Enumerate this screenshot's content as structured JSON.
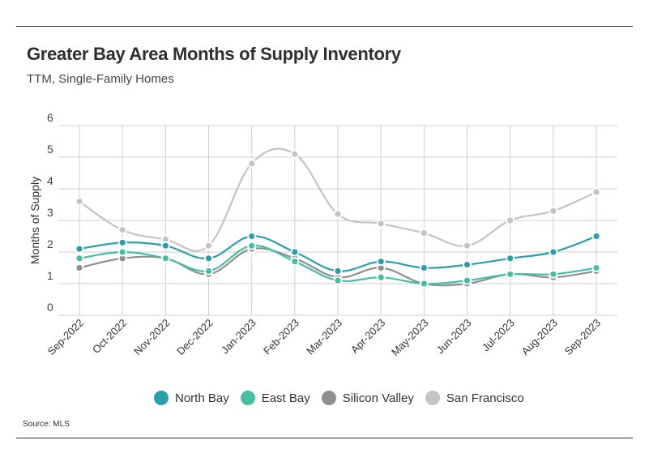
{
  "header": {
    "title": "Greater Bay Area Months of Supply Inventory",
    "subtitle": "TTM, Single-Family Homes"
  },
  "footer": {
    "source": "Source: MLS"
  },
  "chart_data": {
    "type": "line",
    "title": "Greater Bay Area Months of Supply Inventory",
    "subtitle": "TTM, Single-Family Homes",
    "xlabel": "",
    "ylabel": "Months of Supply",
    "ylim": [
      0,
      6
    ],
    "yticks": [
      0,
      1,
      2,
      3,
      4,
      5,
      6
    ],
    "grid": true,
    "legend_position": "bottom",
    "categories": [
      "Sep-2022",
      "Oct-2022",
      "Nov-2022",
      "Dec-2022",
      "Jan-2023",
      "Feb-2023",
      "Mar-2023",
      "Apr-2023",
      "May-2023",
      "Jun-2023",
      "Jul-2023",
      "Aug-2023",
      "Sep-2023"
    ],
    "series": [
      {
        "name": "San Francisco",
        "color": "#c4c4c4",
        "values": [
          3.6,
          2.7,
          2.4,
          2.2,
          4.8,
          5.1,
          3.2,
          2.9,
          2.6,
          2.2,
          3.0,
          3.3,
          3.9
        ]
      },
      {
        "name": "Silicon Valley",
        "color": "#8f8f8f",
        "values": [
          1.5,
          1.8,
          1.8,
          1.3,
          2.1,
          1.8,
          1.2,
          1.5,
          1.0,
          1.0,
          1.3,
          1.2,
          1.4
        ]
      },
      {
        "name": "East Bay",
        "color": "#45bfa4",
        "values": [
          1.8,
          2.0,
          1.8,
          1.4,
          2.2,
          1.7,
          1.1,
          1.2,
          1.0,
          1.1,
          1.3,
          1.3,
          1.5
        ]
      },
      {
        "name": "North Bay",
        "color": "#2a9fac",
        "values": [
          2.1,
          2.3,
          2.2,
          1.8,
          2.5,
          2.0,
          1.4,
          1.7,
          1.5,
          1.6,
          1.8,
          2.0,
          2.5
        ]
      }
    ],
    "legend_order": [
      "North Bay",
      "East Bay",
      "Silicon Valley",
      "San Francisco"
    ]
  }
}
